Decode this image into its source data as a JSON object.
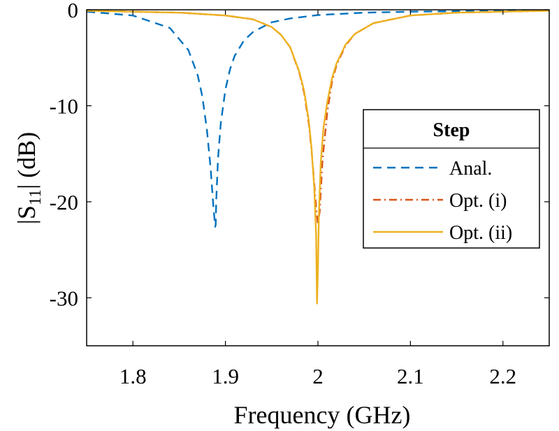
{
  "chart_data": {
    "type": "line",
    "xlabel": "Frequency (GHz)",
    "ylabel": {
      "prefix": "|S",
      "subscript": "11",
      "suffix": "| (dB)"
    },
    "xlim": [
      1.75,
      2.25
    ],
    "ylim": [
      -35,
      0
    ],
    "xticks": [
      1.8,
      1.9,
      2.0,
      2.1,
      2.2
    ],
    "xtick_labels": [
      "1.8",
      "1.9",
      "2",
      "2.1",
      "2.2"
    ],
    "yticks": [
      0,
      -10,
      -20,
      -30
    ],
    "ytick_labels": [
      "0",
      "-10",
      "-20",
      "-30"
    ],
    "grid": false,
    "legend": {
      "title": "Step",
      "placement": "right",
      "entries": [
        "Anal.",
        "Opt. (i)",
        "Opt. (ii)"
      ]
    },
    "series": [
      {
        "name": "Anal.",
        "color": "#0072BD",
        "style": "dashed",
        "x": [
          1.75,
          1.8,
          1.84,
          1.86,
          1.87,
          1.875,
          1.88,
          1.884,
          1.887,
          1.889,
          1.8895,
          1.89,
          1.892,
          1.895,
          1.9,
          1.905,
          1.91,
          1.92,
          1.93,
          1.95,
          1.97,
          2.0,
          2.05,
          2.1,
          2.15,
          2.2,
          2.25
        ],
        "y": [
          -0.2,
          -0.6,
          -1.9,
          -4.2,
          -6.8,
          -9.0,
          -12.5,
          -16.5,
          -20.5,
          -22.6,
          -22.4,
          -20.0,
          -15.5,
          -11.8,
          -8.3,
          -6.2,
          -4.8,
          -3.2,
          -2.3,
          -1.3,
          -0.9,
          -0.55,
          -0.3,
          -0.2,
          -0.15,
          -0.1,
          -0.08
        ]
      },
      {
        "name": "Opt. (i)",
        "color": "#D95319",
        "style": "dashdot",
        "x": [
          1.75,
          1.85,
          1.9,
          1.93,
          1.95,
          1.96,
          1.97,
          1.98,
          1.985,
          1.99,
          1.993,
          1.996,
          1.998,
          2.0,
          2.002,
          2.005,
          2.01,
          2.015,
          2.02,
          2.03,
          2.04,
          2.06,
          2.1,
          2.15,
          2.2,
          2.25
        ],
        "y": [
          -0.1,
          -0.3,
          -0.6,
          -1.0,
          -1.8,
          -2.6,
          -3.9,
          -6.6,
          -8.6,
          -11.8,
          -14.5,
          -18.0,
          -20.6,
          -22.3,
          -21.0,
          -15.6,
          -10.8,
          -7.6,
          -5.8,
          -3.7,
          -2.5,
          -1.4,
          -0.6,
          -0.3,
          -0.2,
          -0.1
        ]
      },
      {
        "name": "Opt. (ii)",
        "color": "#EDB120",
        "style": "solid",
        "x": [
          1.75,
          1.85,
          1.9,
          1.93,
          1.95,
          1.96,
          1.97,
          1.98,
          1.985,
          1.99,
          1.993,
          1.996,
          1.998,
          1.999,
          2.0,
          2.001,
          2.003,
          2.006,
          2.01,
          2.015,
          2.02,
          2.03,
          2.04,
          2.06,
          2.1,
          2.15,
          2.2,
          2.25
        ],
        "y": [
          -0.1,
          -0.3,
          -0.6,
          -1.0,
          -1.8,
          -2.6,
          -3.9,
          -6.5,
          -8.4,
          -11.5,
          -14.3,
          -18.5,
          -23.5,
          -30.6,
          -27.0,
          -21.5,
          -16.0,
          -12.3,
          -9.7,
          -7.2,
          -5.6,
          -3.6,
          -2.5,
          -1.4,
          -0.6,
          -0.3,
          -0.2,
          -0.1
        ]
      }
    ]
  }
}
